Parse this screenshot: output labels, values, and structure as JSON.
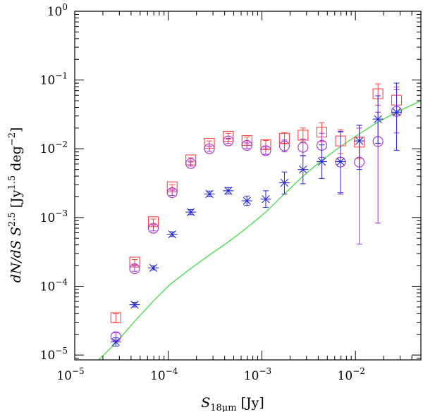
{
  "chart_data": {
    "type": "scatter",
    "title": "",
    "xlabel": "S18μm [Jy]",
    "ylabel": "dN/dS S^2.5 [Jy^1.5 deg^-2]",
    "xlabel_parts": {
      "sym": "S",
      "sub": "18μm",
      "unit": " [Jy]"
    },
    "ylabel_parts": {
      "a": "dN/dS  S",
      "a_sup": "2.5",
      "b": " [Jy",
      "b_sup": "1.5",
      "c": " deg",
      "c_sup": "−2",
      "d": "]"
    },
    "x_scale": "log",
    "y_scale": "log",
    "xlim": [
      1e-05,
      0.05
    ],
    "ylim": [
      8.5e-06,
      1.0
    ],
    "x_ticks": [
      {
        "value": 1e-05,
        "base": "10",
        "exp": "−5"
      },
      {
        "value": 0.0001,
        "base": "10",
        "exp": "−4"
      },
      {
        "value": 0.001,
        "base": "10",
        "exp": "−3"
      },
      {
        "value": 0.01,
        "base": "10",
        "exp": "−2"
      }
    ],
    "y_ticks": [
      {
        "value": 1e-05,
        "base": "10",
        "exp": "−5"
      },
      {
        "value": 0.0001,
        "base": "10",
        "exp": "−4"
      },
      {
        "value": 0.001,
        "base": "10",
        "exp": "−3"
      },
      {
        "value": 0.01,
        "base": "10",
        "exp": "−2"
      },
      {
        "value": 0.1,
        "base": "10",
        "exp": "−1"
      },
      {
        "value": 1,
        "base": "10",
        "exp": "0"
      }
    ],
    "series": [
      {
        "name": "squares",
        "marker": "square",
        "color": "#ff4444",
        "points": [
          {
            "x": 2.75e-05,
            "y": 3.5e-05,
            "lo": 3e-05,
            "hi": 4e-05
          },
          {
            "x": 4.37e-05,
            "y": 0.000225,
            "lo": 0.000205,
            "hi": 0.000245
          },
          {
            "x": 6.92e-05,
            "y": 0.00087,
            "lo": 0.0008,
            "hi": 0.00095
          },
          {
            "x": 0.00011,
            "y": 0.0028,
            "lo": 0.0026,
            "hi": 0.003
          },
          {
            "x": 0.000174,
            "y": 0.0069,
            "lo": 0.0064,
            "hi": 0.0074
          },
          {
            "x": 0.000275,
            "y": 0.012,
            "lo": 0.011,
            "hi": 0.013
          },
          {
            "x": 0.000437,
            "y": 0.0152,
            "lo": 0.0138,
            "hi": 0.0168
          },
          {
            "x": 0.000692,
            "y": 0.0132,
            "lo": 0.0118,
            "hi": 0.0148
          },
          {
            "x": 0.0011,
            "y": 0.0115,
            "lo": 0.01,
            "hi": 0.0132
          },
          {
            "x": 0.00174,
            "y": 0.0142,
            "lo": 0.0118,
            "hi": 0.0172
          },
          {
            "x": 0.00275,
            "y": 0.0158,
            "lo": 0.0125,
            "hi": 0.02
          },
          {
            "x": 0.00437,
            "y": 0.0175,
            "lo": 0.0128,
            "hi": 0.024
          },
          {
            "x": 0.00692,
            "y": 0.013,
            "lo": 0.0085,
            "hi": 0.019
          },
          {
            "x": 0.011,
            "y": 0.0125,
            "lo": 0.0072,
            "hi": 0.022
          },
          {
            "x": 0.0174,
            "y": 0.063,
            "lo": 0.043,
            "hi": 0.088
          },
          {
            "x": 0.0275,
            "y": 0.051,
            "lo": 0.032,
            "hi": 0.079
          }
        ]
      },
      {
        "name": "circles",
        "marker": "circle",
        "color": "#a030d0",
        "points": [
          {
            "x": 2.75e-05,
            "y": 1.85e-05,
            "lo": 1.65e-05,
            "hi": 2.1e-05
          },
          {
            "x": 4.37e-05,
            "y": 0.00018,
            "lo": 0.000165,
            "hi": 0.000198
          },
          {
            "x": 6.92e-05,
            "y": 0.0007,
            "lo": 0.00064,
            "hi": 0.00077
          },
          {
            "x": 0.00011,
            "y": 0.0023,
            "lo": 0.0021,
            "hi": 0.0025
          },
          {
            "x": 0.000174,
            "y": 0.0061,
            "lo": 0.0056,
            "hi": 0.0066
          },
          {
            "x": 0.000275,
            "y": 0.01,
            "lo": 0.0092,
            "hi": 0.0109
          },
          {
            "x": 0.000437,
            "y": 0.013,
            "lo": 0.0119,
            "hi": 0.0142
          },
          {
            "x": 0.000692,
            "y": 0.0112,
            "lo": 0.0101,
            "hi": 0.0124
          },
          {
            "x": 0.0011,
            "y": 0.0094,
            "lo": 0.0083,
            "hi": 0.0106
          },
          {
            "x": 0.00174,
            "y": 0.011,
            "lo": 0.009,
            "hi": 0.0134
          },
          {
            "x": 0.00275,
            "y": 0.0105,
            "lo": 0.008,
            "hi": 0.0138
          },
          {
            "x": 0.00437,
            "y": 0.0112,
            "lo": 0.0075,
            "hi": 0.0168
          },
          {
            "x": 0.00692,
            "y": 0.0064,
            "lo": 0.0023,
            "hi": 0.0175
          },
          {
            "x": 0.011,
            "y": 0.0064,
            "lo": 0.00041,
            "hi": 0.02
          },
          {
            "x": 0.0174,
            "y": 0.0128,
            "lo": 0.00083,
            "hi": 0.034
          },
          {
            "x": 0.0275,
            "y": 0.035,
            "lo": 0.017,
            "hi": 0.072
          }
        ]
      },
      {
        "name": "asterisks",
        "marker": "asterisk",
        "color": "#2828d8",
        "points": [
          {
            "x": 2.75e-05,
            "y": 1.55e-05,
            "lo": 1.35e-05,
            "hi": 1.78e-05
          },
          {
            "x": 4.37e-05,
            "y": 5.4e-05,
            "lo": 5e-05,
            "hi": 5.8e-05
          },
          {
            "x": 6.92e-05,
            "y": 0.000185,
            "lo": 0.000173,
            "hi": 0.000198
          },
          {
            "x": 0.00011,
            "y": 0.00057,
            "lo": 0.00053,
            "hi": 0.00062
          },
          {
            "x": 0.000174,
            "y": 0.0012,
            "lo": 0.0011,
            "hi": 0.00131
          },
          {
            "x": 0.000275,
            "y": 0.0022,
            "lo": 0.002,
            "hi": 0.00243
          },
          {
            "x": 0.000437,
            "y": 0.00245,
            "lo": 0.0022,
            "hi": 0.00273
          },
          {
            "x": 0.000692,
            "y": 0.00175,
            "lo": 0.0015,
            "hi": 0.00205
          },
          {
            "x": 0.0011,
            "y": 0.00185,
            "lo": 0.0014,
            "hi": 0.00245
          },
          {
            "x": 0.00174,
            "y": 0.0032,
            "lo": 0.0022,
            "hi": 0.0046
          },
          {
            "x": 0.00275,
            "y": 0.005,
            "lo": 0.0031,
            "hi": 0.0079
          },
          {
            "x": 0.00437,
            "y": 0.0065,
            "lo": 0.0037,
            "hi": 0.0114
          },
          {
            "x": 0.00692,
            "y": 0.0065,
            "lo": 0.0022,
            "hi": 0.018
          },
          {
            "x": 0.011,
            "y": 0.013,
            "lo": 0.005,
            "hi": 0.022
          },
          {
            "x": 0.0174,
            "y": 0.027,
            "lo": 0.012,
            "hi": 0.059
          },
          {
            "x": 0.0275,
            "y": 0.034,
            "lo": 0.0095,
            "hi": 0.09
          }
        ]
      }
    ],
    "model_line": {
      "name": "model",
      "color": "#44dd44",
      "points": [
        {
          "x": 1.8e-05,
          "y": 8.5e-06
        },
        {
          "x": 2.75e-05,
          "y": 1.5e-05
        },
        {
          "x": 4.37e-05,
          "y": 3.1e-05
        },
        {
          "x": 6.92e-05,
          "y": 6.1e-05
        },
        {
          "x": 0.000105,
          "y": 0.000107
        },
        {
          "x": 0.000174,
          "y": 0.000182
        },
        {
          "x": 0.000275,
          "y": 0.000285
        },
        {
          "x": 0.000437,
          "y": 0.00044
        },
        {
          "x": 0.000692,
          "y": 0.00071
        },
        {
          "x": 0.0011,
          "y": 0.0012
        },
        {
          "x": 0.00174,
          "y": 0.0022
        },
        {
          "x": 0.00275,
          "y": 0.004
        },
        {
          "x": 0.00437,
          "y": 0.0068
        },
        {
          "x": 0.00692,
          "y": 0.0108
        },
        {
          "x": 0.011,
          "y": 0.0165
        },
        {
          "x": 0.0174,
          "y": 0.0245
        },
        {
          "x": 0.0275,
          "y": 0.034
        },
        {
          "x": 0.05,
          "y": 0.05
        }
      ]
    }
  }
}
